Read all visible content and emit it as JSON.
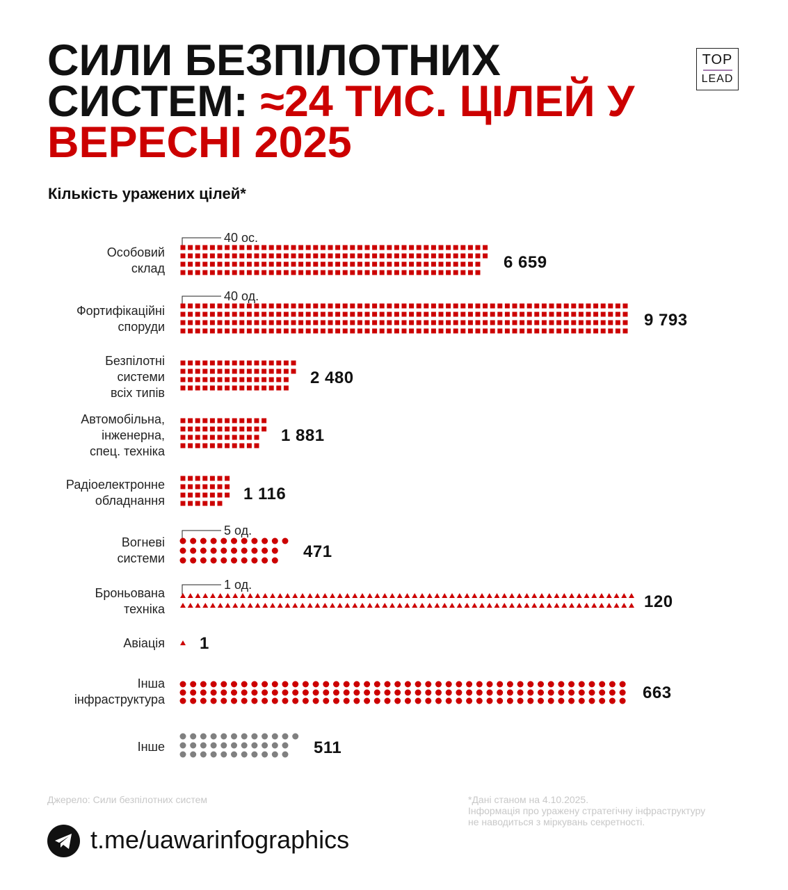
{
  "header": {
    "title_black": "СИЛИ БЕЗПІЛОТНИХ СИСТЕМ:",
    "title_red": "≈24 ТИС. ЦІЛЕЙ У ВЕРЕСНІ 2025",
    "logo_top": "TOP",
    "logo_bottom": "LEAD"
  },
  "chart_data": {
    "type": "pictogram",
    "title": "Кількість уражених цілей*",
    "colors": {
      "primary": "#cc0000",
      "other": "#808080"
    },
    "categories": [
      {
        "label": "Особовий\nсклад",
        "value": 6659,
        "value_label": "6 659",
        "icon": "square",
        "unit_label": "40 ос.",
        "color": "#cc0000"
      },
      {
        "label": "Фортифікаційні\nспоруди",
        "value": 9793,
        "value_label": "9 793",
        "icon": "square",
        "unit_label": "40 од.",
        "color": "#cc0000"
      },
      {
        "label": "Безпілотні\nсистеми\nвсіх типів",
        "value": 2480,
        "value_label": "2 480",
        "icon": "square",
        "color": "#cc0000"
      },
      {
        "label": "Автомобільна,\nінженерна,\nспец. техніка",
        "value": 1881,
        "value_label": "1 881",
        "icon": "square",
        "color": "#cc0000"
      },
      {
        "label": "Радіоелектронне\nобладнання",
        "value": 1116,
        "value_label": "1 116",
        "icon": "square",
        "color": "#cc0000"
      },
      {
        "label": "Вогневі\nсистеми",
        "value": 471,
        "value_label": "471",
        "icon": "circle",
        "unit_label": "5 од.",
        "color": "#cc0000"
      },
      {
        "label": "Броньована\nтехніка",
        "value": 120,
        "value_label": "120",
        "icon": "triangle",
        "unit_label": "1 од.",
        "color": "#cc0000"
      },
      {
        "label": "Авіація",
        "value": 1,
        "value_label": "1",
        "icon": "triangle",
        "color": "#cc0000"
      },
      {
        "label": "Інша\nінфраструктура",
        "value": 663,
        "value_label": "663",
        "icon": "circle",
        "color": "#cc0000"
      },
      {
        "label": "Інше",
        "value": 511,
        "value_label": "511",
        "icon": "circle",
        "color": "#808080"
      }
    ]
  },
  "footer": {
    "source": "Джерело: Сили безпілотних систем",
    "note": "*Дані станом на 4.10.2025.\nІнформація про уражену стратегічну інфраструктуру\nне наводиться з міркувань секретності.",
    "link": "t.me/uawarinfographics",
    "link_icon": "telegram-icon"
  }
}
